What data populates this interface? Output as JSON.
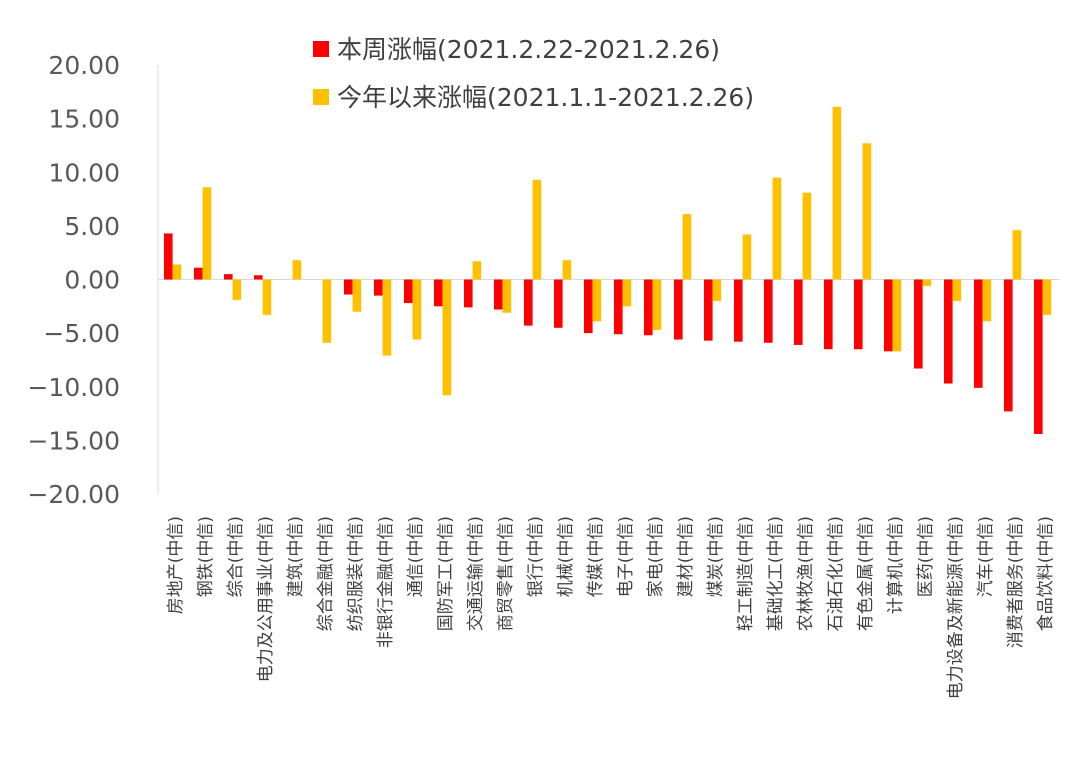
{
  "chart_data": {
    "type": "bar",
    "ylim": [
      -20,
      20
    ],
    "yticks": [
      "20.00",
      "15.00",
      "10.00",
      "5.00",
      "0.00",
      "-5.00",
      "-10.00",
      "-15.00",
      "-20.00"
    ],
    "legend_position": "top-center",
    "grid": false,
    "categories": [
      "房地产(中信)",
      "钢铁(中信)",
      "综合(中信)",
      "电力及公用事业(中信)",
      "建筑(中信)",
      "综合金融(中信)",
      "纺织服装(中信)",
      "非银行金融(中信)",
      "通信(中信)",
      "国防军工(中信)",
      "交通运输(中信)",
      "商贸零售(中信)",
      "银行(中信)",
      "机械(中信)",
      "传媒(中信)",
      "电子(中信)",
      "家电(中信)",
      "建材(中信)",
      "煤炭(中信)",
      "轻工制造(中信)",
      "基础化工(中信)",
      "农林牧渔(中信)",
      "石油石化(中信)",
      "有色金属(中信)",
      "计算机(中信)",
      "医药(中信)",
      "电力设备及新能源(中信)",
      "汽车(中信)",
      "消费者服务(中信)",
      "食品饮料(中信)"
    ],
    "series": [
      {
        "name": "本周涨幅(2021.2.22-2021.2.26)",
        "color": "#ff0000",
        "values": [
          4.3,
          1.1,
          0.5,
          0.4,
          0.0,
          0.0,
          -1.4,
          -1.5,
          -2.2,
          -2.5,
          -2.6,
          -2.8,
          -4.3,
          -4.5,
          -5.0,
          -5.1,
          -5.2,
          -5.6,
          -5.7,
          -5.8,
          -5.9,
          -6.1,
          -6.5,
          -6.5,
          -6.7,
          -8.3,
          -9.7,
          -10.1,
          -12.3,
          -14.4
        ]
      },
      {
        "name": "今年以来涨幅(2021.1.1-2021.2.26)",
        "color": "#ffc000",
        "values": [
          1.4,
          8.6,
          -1.9,
          -3.3,
          1.8,
          -5.9,
          -3.0,
          -7.1,
          -5.6,
          -10.8,
          1.7,
          -3.1,
          9.3,
          1.8,
          -3.9,
          -2.5,
          -4.7,
          6.1,
          -2.0,
          4.2,
          9.5,
          8.1,
          16.1,
          12.7,
          -6.7,
          -0.6,
          -2.0,
          -3.9,
          4.6,
          -3.3
        ]
      }
    ]
  }
}
